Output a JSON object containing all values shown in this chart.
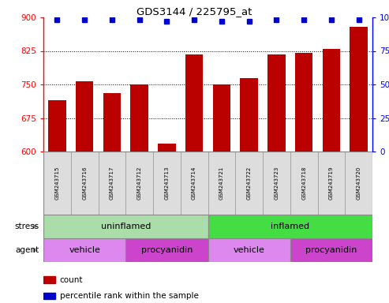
{
  "title": "GDS3144 / 225795_at",
  "samples": [
    "GSM243715",
    "GSM243716",
    "GSM243717",
    "GSM243712",
    "GSM243713",
    "GSM243714",
    "GSM243721",
    "GSM243722",
    "GSM243723",
    "GSM243718",
    "GSM243719",
    "GSM243720"
  ],
  "counts": [
    715,
    757,
    730,
    750,
    617,
    817,
    750,
    765,
    817,
    820,
    830,
    878
  ],
  "percentile_ranks": [
    98,
    98,
    98,
    98,
    97,
    98,
    97,
    97,
    98,
    98,
    98,
    98
  ],
  "ymin": 600,
  "ymax": 900,
  "yticks": [
    600,
    675,
    750,
    825,
    900
  ],
  "right_yticks": [
    0,
    25,
    50,
    75,
    100
  ],
  "bar_color": "#bb0000",
  "dot_color": "#0000cc",
  "stress_groups": [
    {
      "label": "uninflamed",
      "start": 0,
      "end": 6,
      "color": "#aaddaa"
    },
    {
      "label": "inflamed",
      "start": 6,
      "end": 12,
      "color": "#44dd44"
    }
  ],
  "agent_groups": [
    {
      "label": "vehicle",
      "start": 0,
      "end": 3,
      "color": "#dd88ee"
    },
    {
      "label": "procyanidin",
      "start": 3,
      "end": 6,
      "color": "#cc44cc"
    },
    {
      "label": "vehicle",
      "start": 6,
      "end": 9,
      "color": "#dd88ee"
    },
    {
      "label": "procyanidin",
      "start": 9,
      "end": 12,
      "color": "#cc44cc"
    }
  ],
  "stress_label": "stress",
  "agent_label": "agent",
  "legend_count_label": "count",
  "legend_pct_label": "percentile rank within the sample",
  "grid_color": "#aaaaaa",
  "background_color": "#ffffff"
}
